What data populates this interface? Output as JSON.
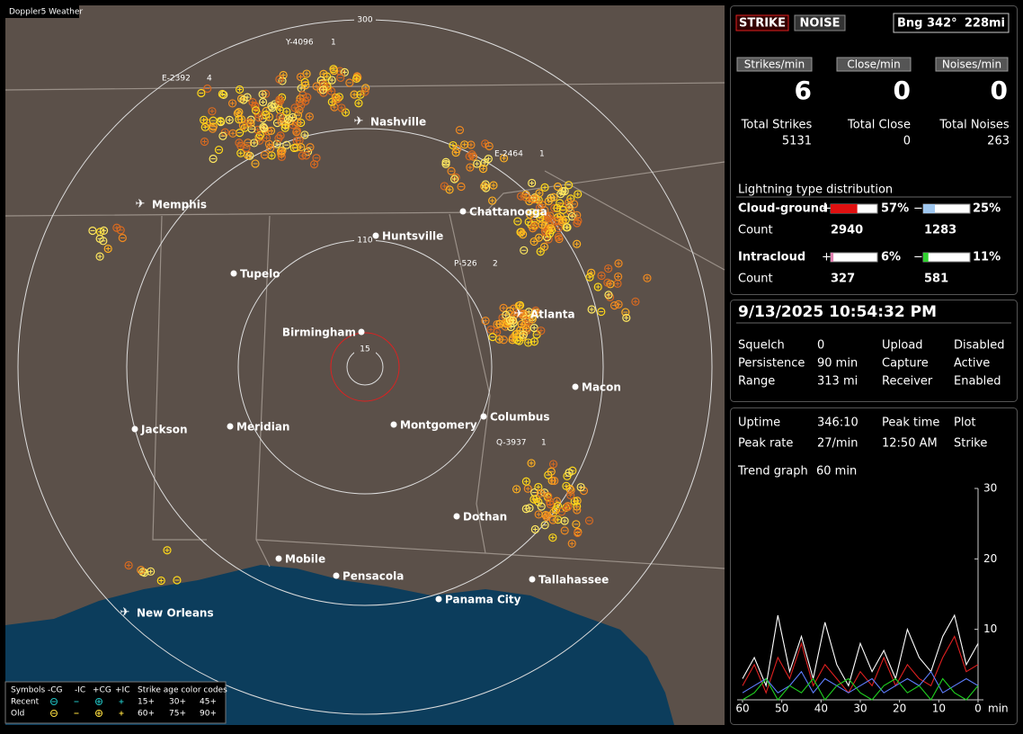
{
  "map": {
    "title": "Doppler5 Weather",
    "range_rings": [
      "300",
      "110",
      "15"
    ],
    "storm_tags": [
      {
        "id": "Y-4096",
        "count": "1"
      },
      {
        "id": "E-2392",
        "count": "4"
      },
      {
        "id": "E-2464",
        "count": "1"
      },
      {
        "id": "P-526",
        "count": "2"
      },
      {
        "id": "Q-3937",
        "count": "1"
      }
    ],
    "cities": [
      "Nashville",
      "Memphis",
      "Chattanooga",
      "Huntsville",
      "Tupelo",
      "Atlanta",
      "Birmingham",
      "Macon",
      "Jackson",
      "Meridian",
      "Montgomery",
      "Columbus",
      "Dothan",
      "Mobile",
      "Pensacola",
      "Tallahassee",
      "Panama City",
      "New Orleans"
    ],
    "legend": {
      "symbols_label": "Symbols",
      "headers": [
        "-CG",
        "-IC",
        "+CG",
        "+IC"
      ],
      "age_label": "Strike age color codes",
      "rows": [
        {
          "label": "Recent",
          "ages": [
            "15+",
            "30+",
            "45+"
          ]
        },
        {
          "label": "Old",
          "ages": [
            "60+",
            "75+",
            "90+"
          ]
        }
      ]
    }
  },
  "status": {
    "strike_button": "STRIKE",
    "noise_button": "NOISE",
    "bearing": "Bng 342°",
    "distance": "228mi",
    "rates": [
      {
        "label": "Strikes/min",
        "value": 6
      },
      {
        "label": "Close/min",
        "value": 0
      },
      {
        "label": "Noises/min",
        "value": 0
      }
    ],
    "totals": [
      {
        "label": "Total Strikes",
        "value": 5131
      },
      {
        "label": "Total Close",
        "value": 0
      },
      {
        "label": "Total Noises",
        "value": 263
      }
    ],
    "distribution_title": "Lightning type distribution",
    "types": [
      {
        "label": "Cloud-ground",
        "positive": {
          "sign": "+",
          "value": 57,
          "label": "57%"
        },
        "negative": {
          "sign": "−",
          "value": 25,
          "label": "25%"
        },
        "count_label": "Count",
        "counts": [
          2940,
          1283
        ]
      },
      {
        "label": "Intracloud",
        "positive": {
          "sign": "+",
          "value": 6,
          "label": "6%"
        },
        "negative": {
          "sign": "−",
          "value": 11,
          "label": "11%"
        },
        "count_label": "Count",
        "counts": [
          327,
          581
        ]
      }
    ]
  },
  "settings": {
    "datetime": "9/13/2025 10:54:32 PM",
    "rows": [
      [
        "Squelch",
        0,
        "Upload",
        "Disabled"
      ],
      [
        "Persistence",
        "90 min",
        "Capture",
        "Active"
      ],
      [
        "Range",
        "313 mi",
        "Receiver",
        "Enabled"
      ]
    ]
  },
  "stats": {
    "rows": [
      [
        "Uptime",
        "346:10",
        "Peak time",
        "Plot"
      ],
      [
        "Peak rate",
        "27/min",
        "12:50 AM",
        "Strike"
      ]
    ],
    "trend_label": "Trend graph",
    "trend_window": "60 min",
    "trend_graph": {
      "x_unit": "min",
      "xlim": [
        60,
        0
      ],
      "ylim": [
        0,
        30
      ],
      "xticks": [
        60,
        50,
        40,
        30,
        20,
        10,
        0
      ],
      "yticks": [
        10,
        20,
        30
      ],
      "x": [
        60,
        57,
        54,
        51,
        48,
        45,
        42,
        39,
        36,
        33,
        30,
        27,
        24,
        21,
        18,
        15,
        12,
        9,
        6,
        3,
        0
      ],
      "series": [
        {
          "color": "#ffffff",
          "values": [
            3,
            6,
            2,
            12,
            4,
            9,
            3,
            11,
            5,
            2,
            8,
            4,
            7,
            3,
            10,
            6,
            4,
            9,
            12,
            5,
            8
          ]
        },
        {
          "color": "#e02020",
          "values": [
            2,
            5,
            1,
            6,
            3,
            8,
            2,
            5,
            3,
            1,
            4,
            2,
            6,
            2,
            5,
            3,
            2,
            6,
            9,
            4,
            5
          ]
        },
        {
          "color": "#5f7fff",
          "values": [
            1,
            2,
            3,
            1,
            2,
            4,
            1,
            3,
            2,
            1,
            2,
            3,
            1,
            2,
            3,
            2,
            4,
            1,
            2,
            3,
            2
          ]
        },
        {
          "color": "#20d020",
          "values": [
            0,
            1,
            3,
            0,
            2,
            1,
            3,
            0,
            2,
            3,
            1,
            0,
            2,
            3,
            1,
            2,
            0,
            3,
            1,
            0,
            2
          ]
        }
      ]
    }
  }
}
